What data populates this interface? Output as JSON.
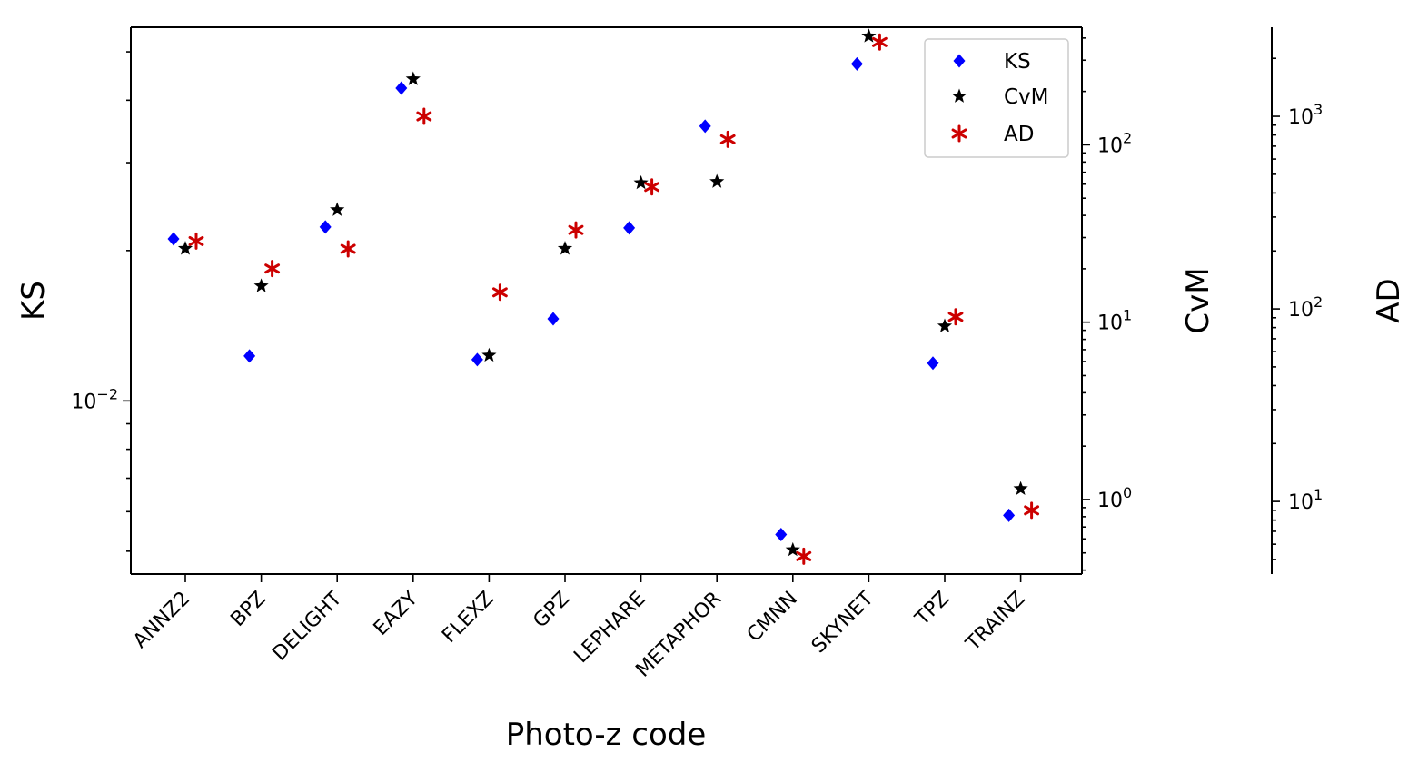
{
  "chart_data": {
    "type": "scatter",
    "xlabel": "Photo-z code",
    "categories": [
      "ANNZ2",
      "BPZ",
      "DELIGHT",
      "EAZY",
      "FLEXZ",
      "GPZ",
      "LEPHARE",
      "METAPHOR",
      "CMNN",
      "SKYNET",
      "TPZ",
      "TRAINZ"
    ],
    "axes": {
      "KS": {
        "label": "KS",
        "scale": "log",
        "range": [
          0.0045,
          0.056
        ],
        "tick_labels": [
          "10^-2"
        ]
      },
      "CvM": {
        "label": "CvM",
        "scale": "log",
        "range": [
          0.38,
          460
        ],
        "tick_labels": [
          "10^0",
          "10^1",
          "10^2"
        ]
      },
      "AD": {
        "label": "AD",
        "scale": "log",
        "range": [
          4.2,
          2900
        ],
        "tick_labels": [
          "10^1",
          "10^2",
          "10^3"
        ]
      }
    },
    "series": [
      {
        "name": "KS",
        "axis": "KS",
        "marker": "diamond",
        "color": "#0000ff",
        "values": [
          0.0211,
          0.0123,
          0.0223,
          0.0423,
          0.0121,
          0.0146,
          0.0222,
          0.0355,
          0.0054,
          0.0473,
          0.0119,
          0.0059
        ]
      },
      {
        "name": "CvM",
        "axis": "CvM",
        "marker": "star",
        "color": "#000000",
        "values": [
          26,
          16,
          43,
          235,
          6.5,
          26,
          61,
          62,
          0.52,
          410,
          9.5,
          1.15
        ]
      },
      {
        "name": "AD",
        "axis": "AD",
        "marker": "asterisk",
        "color": "#cc0000",
        "values": [
          225,
          162,
          205,
          1000,
          122,
          257,
          430,
          760,
          5.2,
          2430,
          91,
          9.0
        ]
      }
    ],
    "legend": {
      "position": "top-right",
      "entries": [
        "KS",
        "CvM",
        "AD"
      ]
    }
  }
}
